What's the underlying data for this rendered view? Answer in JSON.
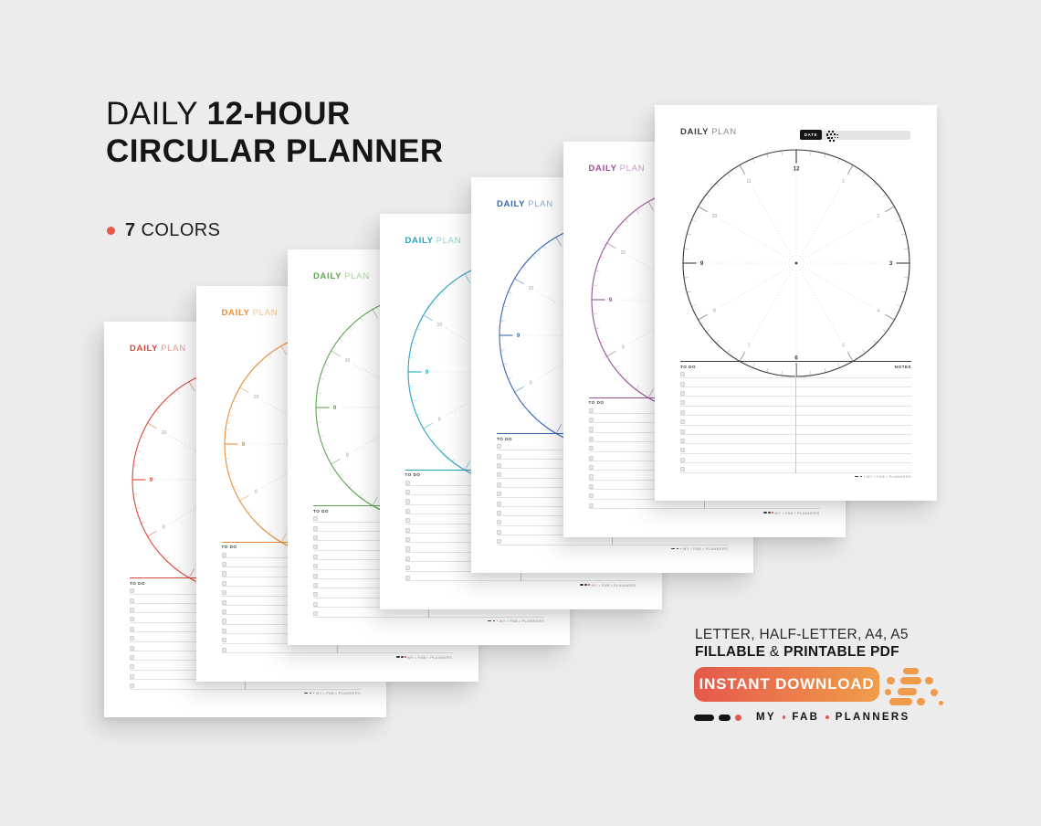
{
  "background_color": "#ececec",
  "header": {
    "title_line1_regular": "DAILY",
    "title_line1_bold": "12-HOUR",
    "title_line2_bold": "CIRCULAR PLANNER",
    "feature": {
      "count": "7",
      "label": "COLORS",
      "bullet_color": "#e8594a"
    }
  },
  "planner_template": {
    "daily_label": "DAILY",
    "plan_label": "PLAN",
    "date_label": "DATE",
    "todo_label": "TO DO",
    "notes_label": "NOTES",
    "footer_brand": "MY • FAB • PLANNERS",
    "clock_hours": [
      "12",
      "1",
      "2",
      "3",
      "4",
      "5",
      "6",
      "7",
      "8",
      "9",
      "10",
      "11"
    ],
    "todo_rows": 11
  },
  "pages": [
    {
      "name": "red",
      "accent": "#d8493b",
      "plan_color": "#e9948a"
    },
    {
      "name": "orange",
      "accent": "#e78f3b",
      "plan_color": "#f3c38e"
    },
    {
      "name": "green",
      "accent": "#5ca551",
      "plan_color": "#abd2a2"
    },
    {
      "name": "teal",
      "accent": "#22a5c1",
      "plan_color": "#92cfdd"
    },
    {
      "name": "blue",
      "accent": "#3566b4",
      "plan_color": "#8fa9d6"
    },
    {
      "name": "purple",
      "accent": "#9b4f99",
      "plan_color": "#c79fc6"
    },
    {
      "name": "black",
      "accent": "#3a3a3a",
      "plan_color": "#8c8c8c"
    }
  ],
  "details": {
    "formats_line": "LETTER, HALF-LETTER, A4, A5",
    "fillable_bold": "FILLABLE",
    "amp": "&",
    "printable_bold": "PRINTABLE PDF"
  },
  "cta": {
    "label": "INSTANT DOWNLOAD",
    "gradient_start": "#e5584c",
    "gradient_end": "#f09d4a",
    "dots_color": "#f09a4b"
  },
  "brand": {
    "words": [
      "MY",
      "FAB",
      "PLANNERS"
    ],
    "dot_color": "#e8594a",
    "dash_color": "#151515"
  }
}
